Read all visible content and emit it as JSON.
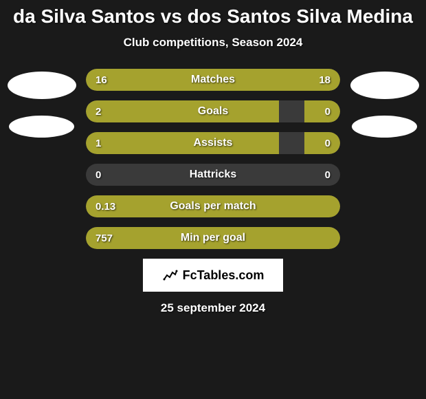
{
  "title": "da Silva Santos vs dos Santos Silva Medina",
  "subtitle": "Club competitions, Season 2024",
  "colors": {
    "bar_fill": "#a5a22e",
    "bar_bg": "#3a3a3a",
    "background": "#1a1a1a",
    "text": "#ffffff",
    "avatar": "#ffffff"
  },
  "stats": [
    {
      "label": "Matches",
      "left_val": "16",
      "right_val": "18",
      "left_pct": 47,
      "right_pct": 53,
      "left_color": "#a5a22e",
      "right_color": "#a5a22e"
    },
    {
      "label": "Goals",
      "left_val": "2",
      "right_val": "0",
      "left_pct": 76,
      "right_pct": 14,
      "left_color": "#a5a22e",
      "right_color": "#a5a22e"
    },
    {
      "label": "Assists",
      "left_val": "1",
      "right_val": "0",
      "left_pct": 76,
      "right_pct": 14,
      "left_color": "#a5a22e",
      "right_color": "#a5a22e"
    },
    {
      "label": "Hattricks",
      "left_val": "0",
      "right_val": "0",
      "left_pct": 0,
      "right_pct": 0,
      "left_color": "#a5a22e",
      "right_color": "#a5a22e"
    },
    {
      "label": "Goals per match",
      "left_val": "0.13",
      "right_val": "",
      "left_pct": 100,
      "right_pct": 0,
      "left_color": "#a5a22e",
      "right_color": "#a5a22e",
      "full": true
    },
    {
      "label": "Min per goal",
      "left_val": "757",
      "right_val": "",
      "left_pct": 100,
      "right_pct": 0,
      "left_color": "#a5a22e",
      "right_color": "#a5a22e",
      "full": true
    }
  ],
  "brand": "FcTables.com",
  "date": "25 september 2024"
}
